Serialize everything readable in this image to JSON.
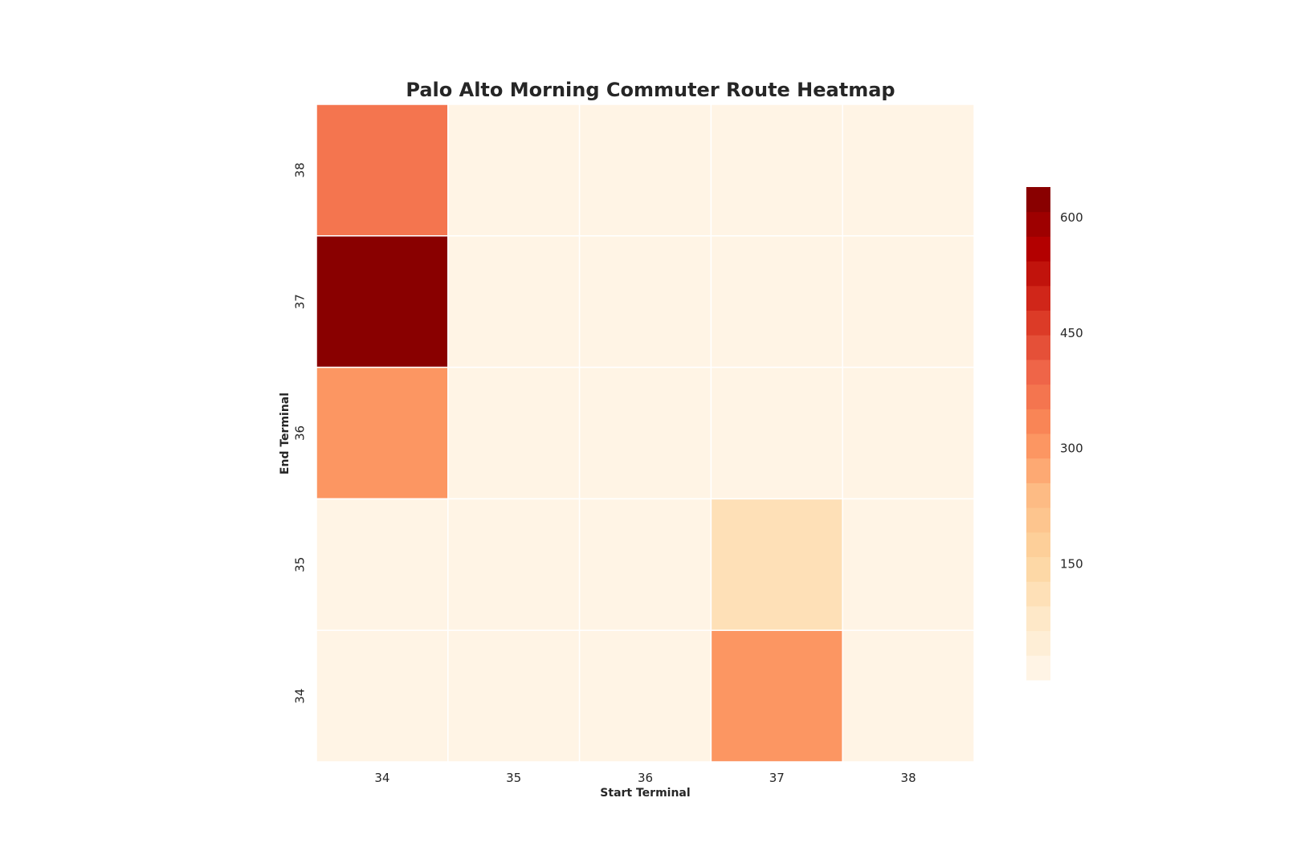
{
  "chart_data": {
    "type": "heatmap",
    "title": "Palo Alto Morning Commuter Route Heatmap",
    "xlabel": "Start Terminal",
    "ylabel": "End Terminal",
    "x_categories": [
      "34",
      "35",
      "36",
      "37",
      "38"
    ],
    "y_categories": [
      "38",
      "37",
      "36",
      "35",
      "34"
    ],
    "values": [
      [
        370,
        3,
        3,
        3,
        3
      ],
      [
        640,
        3,
        3,
        3,
        3
      ],
      [
        300,
        3,
        3,
        25,
        3
      ],
      [
        3,
        3,
        3,
        110,
        3
      ],
      [
        3,
        3,
        3,
        300,
        3
      ]
    ],
    "colorbar": {
      "min": 0,
      "max": 640,
      "ticks": [
        150,
        300,
        450,
        600
      ],
      "levels": 20
    },
    "colormap": [
      "#fff7ec",
      "#fee8c8",
      "#fdd49e",
      "#fdbb84",
      "#fc8d59",
      "#ef6548",
      "#d7301f",
      "#b30000",
      "#7f0000"
    ],
    "grid": false,
    "legend": "colorbar-right"
  }
}
